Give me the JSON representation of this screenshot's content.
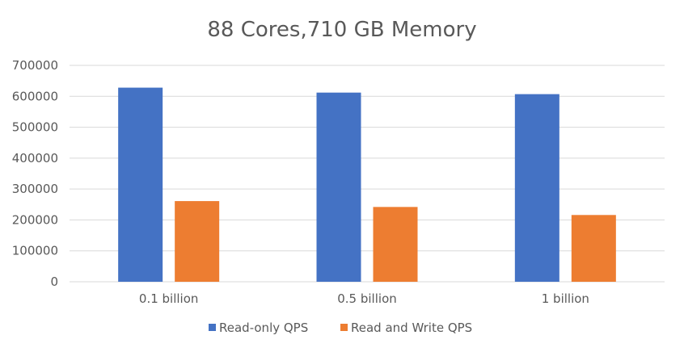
{
  "chart_data": {
    "type": "bar",
    "title": "88 Cores,710 GB Memory",
    "xlabel": "",
    "ylabel": "",
    "categories": [
      "0.1 billion",
      "0.5 billion",
      "1 billion"
    ],
    "series": [
      {
        "name": "Read-only QPS",
        "values": [
          628000,
          612000,
          607000
        ],
        "color": "#4472C4"
      },
      {
        "name": "Read and Write QPS",
        "values": [
          261000,
          242000,
          216000
        ],
        "color": "#ED7D31"
      }
    ],
    "ylim": [
      0,
      700000
    ],
    "yticks": [
      0,
      100000,
      200000,
      300000,
      400000,
      500000,
      600000,
      700000
    ],
    "ytick_labels": [
      "0",
      "100000",
      "200000",
      "300000",
      "400000",
      "500000",
      "600000",
      "700000"
    ],
    "grid": true,
    "legend_position": "bottom",
    "gridline_color": "#d9d9d9"
  }
}
